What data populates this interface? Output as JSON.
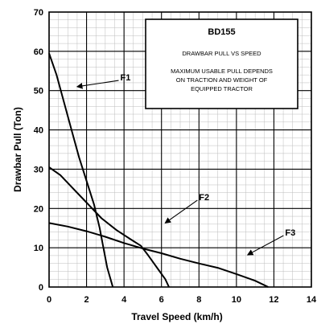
{
  "chart_data": {
    "type": "line",
    "xlabel": "Travel Speed (km/h)",
    "ylabel": "Drawbar Pull (Ton)",
    "xlim": [
      0,
      14
    ],
    "ylim": [
      0,
      70
    ],
    "x_ticks": [
      "0",
      "2",
      "4",
      "6",
      "8",
      "10",
      "12",
      "14"
    ],
    "y_ticks": [
      "0",
      "10",
      "20",
      "30",
      "40",
      "50",
      "60",
      "70"
    ],
    "grid": true,
    "info_box": {
      "title": "BD155",
      "subtitle": "DRAWBAR PULL VS SPEED",
      "note_lines": [
        "MAXIMUM USABLE PULL DEPENDS",
        "ON TRACTION AND WEIGHT OF",
        "EQUIPPED TRACTOR"
      ]
    },
    "series": [
      {
        "name": "F1",
        "points": [
          [
            0,
            59.5
          ],
          [
            0.4,
            54
          ],
          [
            0.8,
            47
          ],
          [
            1.2,
            40
          ],
          [
            1.6,
            33
          ],
          [
            2.0,
            27
          ],
          [
            2.4,
            21
          ],
          [
            2.7,
            15
          ],
          [
            2.9,
            10
          ],
          [
            3.1,
            5
          ],
          [
            3.4,
            0
          ]
        ],
        "label_pos": [
          3.8,
          53
        ],
        "arrow_to": [
          1.5,
          51
        ]
      },
      {
        "name": "F2",
        "points": [
          [
            0,
            30.5
          ],
          [
            0.6,
            28.5
          ],
          [
            1.2,
            25.5
          ],
          [
            2.0,
            21.5
          ],
          [
            2.8,
            17.5
          ],
          [
            3.6,
            14.5
          ],
          [
            4.4,
            12
          ],
          [
            4.9,
            10.5
          ],
          [
            5.3,
            8
          ],
          [
            5.6,
            6
          ],
          [
            5.9,
            4
          ],
          [
            6.2,
            2
          ],
          [
            6.4,
            0
          ]
        ],
        "label_pos": [
          8.0,
          22.5
        ],
        "arrow_to": [
          6.2,
          16.3
        ]
      },
      {
        "name": "F3",
        "points": [
          [
            0,
            16.3
          ],
          [
            1.0,
            15.4
          ],
          [
            2.0,
            14.2
          ],
          [
            3.0,
            12.8
          ],
          [
            4.0,
            11.2
          ],
          [
            5.0,
            9.8
          ],
          [
            6.0,
            8.6
          ],
          [
            7.0,
            7.2
          ],
          [
            8.0,
            6.0
          ],
          [
            9.0,
            4.9
          ],
          [
            10.0,
            3.3
          ],
          [
            11.0,
            1.6
          ],
          [
            11.7,
            0
          ]
        ],
        "label_pos": [
          12.6,
          13.5
        ],
        "arrow_to": [
          10.6,
          8.2
        ]
      }
    ]
  }
}
